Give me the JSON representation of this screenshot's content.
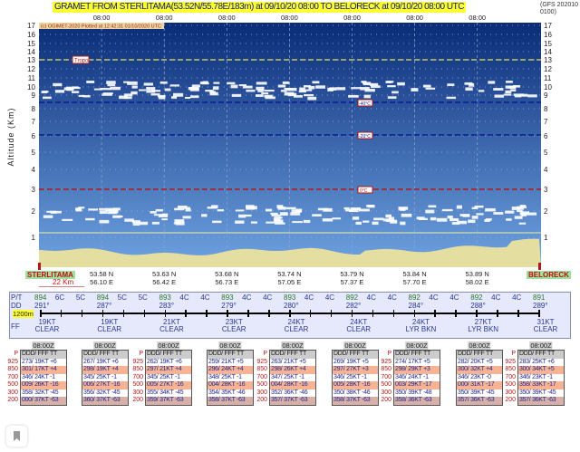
{
  "header": {
    "title": "GRAMET FROM STERLITAMA(53.52N/55.78E/183m) at 09/10/20 08:00   TO   BELORECK at 09/10/20 08:00 UTC",
    "model": "(GFS 2020100100)",
    "credit": "(c) OGIMET-2020 Plotted at 12:42:31 01/10/2020 UTC"
  },
  "times": [
    "08:00",
    "08:00",
    "08:00",
    "08:00",
    "08:00",
    "08:00",
    "08:00"
  ],
  "axis": {
    "ylabel": "Altitude (Km)",
    "ticks": [
      "1",
      "2",
      "3",
      "4",
      "5",
      "6",
      "7",
      "8",
      "9",
      "10",
      "11",
      "12",
      "13",
      "14",
      "15",
      "16",
      "17"
    ]
  },
  "levels": {
    "tropo": "Tropo",
    "iso": [
      "-40°C",
      "-20°C",
      "0°C"
    ]
  },
  "stations": {
    "origin": "STERLITAMA",
    "dest": "BELORECK"
  },
  "coords": [
    [
      "53.58 N",
      "56.10 E"
    ],
    [
      "53.63 N",
      "56.42 E"
    ],
    [
      "53.68 N",
      "56.73 E"
    ],
    [
      "53.74 N",
      "57.05 E"
    ],
    [
      "53.79 N",
      "57.37 E"
    ],
    [
      "53.84 N",
      "57.70 E"
    ],
    [
      "53.89 N",
      "58.02 E"
    ]
  ],
  "scale": "22 Km",
  "strip": {
    "labels": [
      "P/T",
      "DD",
      "FF"
    ],
    "level": "1200m",
    "pt": [
      "894",
      "6C",
      "5C",
      "894",
      "5C",
      "5C",
      "893",
      "4C",
      "4C",
      "893",
      "4C",
      "4C",
      "893",
      "4C",
      "4C",
      "892",
      "4C",
      "4C",
      "892",
      "4C",
      "4C",
      "892",
      "4C",
      "4C",
      "891"
    ],
    "dd": [
      "291°",
      "287°",
      "283°",
      "279°",
      "280°",
      "282°",
      "284°",
      "288°",
      "289°"
    ],
    "ff": [
      "19KT",
      "19KT",
      "21KT",
      "23KT",
      "24KT",
      "24KT",
      "24KT",
      "27KT",
      "31KT"
    ],
    "wx": [
      "CLEAR",
      "CLEAR",
      "CLEAR",
      "CLEAR",
      "CLEAR",
      "CLEAR",
      "LYR BKN",
      "LYR BKN",
      "CLEAR"
    ]
  },
  "tables": {
    "time": "08:00Z",
    "header": "DDD/ FFF TT",
    "p_label": "P",
    "pressures": [
      "925",
      "850",
      "700",
      "500",
      "300",
      "200"
    ],
    "cols": [
      [
        "273/ 19KT +6",
        "301/ 17KT +4",
        "346/ 24KT -1",
        "009/ 26KT -16",
        "358/ 32KT -45",
        "000/ 37KT -63"
      ],
      [
        "267/ 19KT +6",
        "298/ 19KT +4",
        "345/ 25KT -1",
        "006/ 27KT -16",
        "356/ 32KT -45",
        "360/ 37KT -63"
      ],
      [
        "262/ 19KT +6",
        "297/ 21KT +4",
        "345/ 25KT -1",
        "005/ 27KT -16",
        "355/ 34KT -45",
        "359/ 37KT -63"
      ],
      [
        "259/ 21KT +5",
        "296/ 24KT +4",
        "348/ 25KT -1",
        "004/ 28KT -16",
        "354/ 35KT -46",
        "358/ 37KT -63"
      ],
      [
        "263/ 21KT +5",
        "298/ 26KT +4",
        "347/ 25KT -1",
        "004/ 28KT -16",
        "352/ 36KT -46",
        "357/ 37KT -63"
      ],
      [
        "269/ 19KT +5",
        "297/ 27KT +3",
        "346/ 25KT -1",
        "005/ 28KT -16",
        "350/ 38KT -46",
        "358/ 37KT -63"
      ],
      [
        "274/ 17KT +5",
        "298/ 29KT +3",
        "346/ 24KT -1",
        "003/ 29KT -17",
        "350/ 39KT -48",
        "358/ 36KT -63"
      ],
      [
        "282/ 20KT +5",
        "300/ 32KT +4",
        "346/ 23KT -0",
        "000/ 31KT -17",
        "350/ 39KT -45",
        "357/ 36KT -63"
      ],
      [
        "283/ 25KT +6",
        "300/ 34KT +5",
        "346/ 23KT -1",
        "358/ 33KT -17",
        "350/ 39KT -45",
        "357/ 36KT -63"
      ]
    ]
  },
  "colors": {
    "sky_top": "#0a2c78",
    "sky_bottom": "#6fa3e2",
    "terrain": "#e4dfa0",
    "tropo": "#c8c860",
    "cold_iso": "#0a1a90",
    "zero_iso": "#b01818"
  }
}
